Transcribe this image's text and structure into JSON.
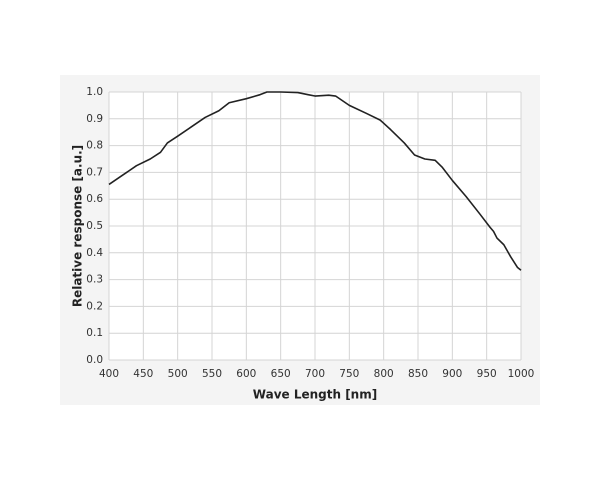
{
  "chart_data": {
    "type": "line",
    "xlabel": "Wave Length [nm]",
    "ylabel": "Relative response [a.u.]",
    "x": [
      400,
      420,
      440,
      460,
      475,
      485,
      500,
      520,
      540,
      560,
      575,
      600,
      620,
      630,
      650,
      675,
      690,
      700,
      720,
      730,
      750,
      775,
      795,
      810,
      830,
      845,
      860,
      875,
      885,
      900,
      920,
      940,
      955,
      960,
      965,
      975,
      985,
      995,
      1000
    ],
    "series": [
      {
        "color": "#222222",
        "values": [
          0.655,
          0.69,
          0.725,
          0.75,
          0.775,
          0.81,
          0.835,
          0.87,
          0.905,
          0.93,
          0.96,
          0.975,
          0.99,
          1.0,
          1.0,
          0.998,
          0.99,
          0.985,
          0.988,
          0.985,
          0.95,
          0.92,
          0.895,
          0.86,
          0.81,
          0.765,
          0.75,
          0.745,
          0.72,
          0.67,
          0.61,
          0.545,
          0.495,
          0.48,
          0.455,
          0.43,
          0.385,
          0.345,
          0.335
        ]
      }
    ],
    "xlim": [
      400,
      1000
    ],
    "xticks": [
      400,
      450,
      500,
      550,
      600,
      650,
      700,
      750,
      800,
      850,
      900,
      950,
      1000
    ],
    "ylim": [
      0,
      1
    ],
    "yticks": [
      {
        "value": 0,
        "label": "0.0"
      },
      0.1,
      0.2,
      0.3,
      0.4,
      0.5,
      0.6,
      0.7,
      0.8,
      0.9,
      {
        "value": 1,
        "label": "1.0"
      }
    ],
    "grid": true
  }
}
